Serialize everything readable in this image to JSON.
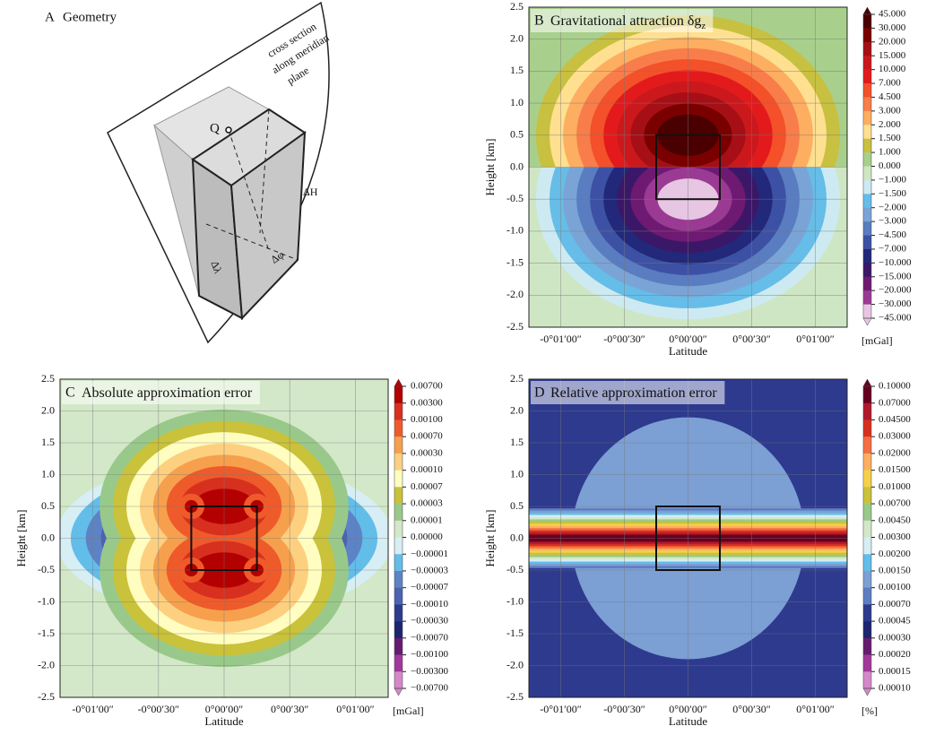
{
  "diagram": {
    "label": "A",
    "title": "Geometry",
    "annotation": [
      "cross section",
      "along meridian",
      "plane"
    ],
    "point": "Q",
    "dims": [
      "ΔH",
      "Δλ",
      "Δφ"
    ]
  },
  "chart_data": [
    {
      "type": "contour",
      "panel": "B",
      "title": "Gravitational attraction δg",
      "title_sub": "z",
      "xlabel": "Latitude",
      "ylabel": "Height [km]",
      "unit": "[mGal]",
      "xlim": [
        -75,
        75
      ],
      "ylim": [
        -2.5,
        2.5
      ],
      "xticks": [
        {
          "value": -60,
          "label": "-0°01′00″"
        },
        {
          "value": -30,
          "label": "-0°00′30″"
        },
        {
          "value": 0,
          "label": "0°00′00″"
        },
        {
          "value": 30,
          "label": "0°00′30″"
        },
        {
          "value": 60,
          "label": "0°01′00″"
        }
      ],
      "yticks": [
        -2.5,
        {
          "value": -2,
          "label": "-2.0"
        },
        -1.5,
        {
          "value": -1,
          "label": "-1.0"
        },
        -0.5,
        {
          "value": 0,
          "label": "0.0"
        },
        0.5,
        {
          "value": 1,
          "label": "1.0"
        },
        1.5,
        {
          "value": 2,
          "label": "2.0"
        },
        2.5
      ],
      "grid": true,
      "prism": {
        "x": [
          -15,
          15
        ],
        "y": [
          -0.5,
          0.5
        ]
      },
      "levels": [
        {
          "value": 45,
          "label": "45.000"
        },
        {
          "value": 30,
          "label": "30.000"
        },
        {
          "value": 20,
          "label": "20.000"
        },
        {
          "value": 15,
          "label": "15.000"
        },
        {
          "value": 10,
          "label": "10.000"
        },
        {
          "value": 7,
          "label": "7.000"
        },
        {
          "value": 4.5,
          "label": "4.500"
        },
        {
          "value": 3,
          "label": "3.000"
        },
        {
          "value": 2,
          "label": "2.000"
        },
        {
          "value": 1.5,
          "label": "1.500"
        },
        {
          "value": 1,
          "label": "1.000"
        },
        {
          "value": 0,
          "label": "0.000"
        },
        {
          "value": -1,
          "label": "−1.000"
        },
        {
          "value": -1.5,
          "label": "−1.500"
        },
        {
          "value": -2,
          "label": "−2.000"
        },
        {
          "value": -3,
          "label": "−3.000"
        },
        {
          "value": -4.5,
          "label": "−4.500"
        },
        {
          "value": -7,
          "label": "−7.000"
        },
        {
          "value": -10,
          "label": "−10.000"
        },
        {
          "value": -15,
          "label": "−15.000"
        },
        {
          "value": -20,
          "label": "−20.000"
        },
        {
          "value": -30,
          "label": "−30.000"
        },
        {
          "value": -45,
          "label": "−45.000"
        }
      ],
      "colors": [
        "#4a0000",
        "#7a0000",
        "#a50f15",
        "#cb181d",
        "#e31a1c",
        "#f4502a",
        "#f87d4a",
        "#fdae61",
        "#fee090",
        "#c8c040",
        "#a8d08c",
        "#cfe6c4",
        "#cdeaf2",
        "#66bde8",
        "#7ba4d6",
        "#5a7cc0",
        "#3d51a4",
        "#22287a",
        "#3b1768",
        "#6e1a72",
        "#9b3a93",
        "#e6c6e2"
      ]
    },
    {
      "type": "contour",
      "panel": "C",
      "title": "Absolute approximation error",
      "xlabel": "Latitude",
      "ylabel": "Height [km]",
      "unit": "[mGal]",
      "xlim": [
        -75,
        75
      ],
      "ylim": [
        -2.5,
        2.5
      ],
      "xticks": [
        {
          "value": -60,
          "label": "-0°01′00″"
        },
        {
          "value": -30,
          "label": "-0°00′30″"
        },
        {
          "value": 0,
          "label": "0°00′00″"
        },
        {
          "value": 30,
          "label": "0°00′30″"
        },
        {
          "value": 60,
          "label": "0°01′00″"
        }
      ],
      "yticks": [
        -2.5,
        {
          "value": -2,
          "label": "-2.0"
        },
        -1.5,
        {
          "value": -1,
          "label": "-1.0"
        },
        -0.5,
        {
          "value": 0,
          "label": "0.0"
        },
        0.5,
        {
          "value": 1,
          "label": "1.0"
        },
        1.5,
        {
          "value": 2,
          "label": "2.0"
        },
        2.5
      ],
      "grid": true,
      "prism": {
        "x": [
          -15,
          15
        ],
        "y": [
          -0.5,
          0.5
        ]
      },
      "levels": [
        {
          "value": 0.007,
          "label": "0.00700"
        },
        {
          "value": 0.003,
          "label": "0.00300"
        },
        {
          "value": 0.001,
          "label": "0.00100"
        },
        {
          "value": 0.0007,
          "label": "0.00070"
        },
        {
          "value": 0.0003,
          "label": "0.00030"
        },
        {
          "value": 0.0001,
          "label": "0.00010"
        },
        {
          "value": 7e-05,
          "label": "0.00007"
        },
        {
          "value": 3e-05,
          "label": "0.00003"
        },
        {
          "value": 1e-05,
          "label": "0.00001"
        },
        {
          "value": 0,
          "label": "0.00000"
        },
        {
          "value": -1e-05,
          "label": "−0.00001"
        },
        {
          "value": -3e-05,
          "label": "−0.00003"
        },
        {
          "value": -7e-05,
          "label": "−0.00007"
        },
        {
          "value": -0.0001,
          "label": "−0.00010"
        },
        {
          "value": -0.0003,
          "label": "−0.00030"
        },
        {
          "value": -0.0007,
          "label": "−0.00070"
        },
        {
          "value": -0.001,
          "label": "−0.00100"
        },
        {
          "value": -0.003,
          "label": "−0.00300"
        },
        {
          "value": -0.007,
          "label": "−0.00700"
        }
      ],
      "colors": [
        "#b30000",
        "#d7301f",
        "#ef5a2a",
        "#f6a04d",
        "#fdd080",
        "#fffdc0",
        "#c9c23a",
        "#99c98a",
        "#d3e8c8",
        "#d6eef4",
        "#62bde9",
        "#5d83c6",
        "#4c62b2",
        "#2d3a8e",
        "#1d2470",
        "#661c6e",
        "#a1389a",
        "#d488c8"
      ]
    },
    {
      "type": "contour",
      "panel": "D",
      "title": "Relative approximation error",
      "xlabel": "Latitude",
      "ylabel": "Height [km]",
      "unit": "[%]",
      "xlim": [
        -75,
        75
      ],
      "ylim": [
        -2.5,
        2.5
      ],
      "xticks": [
        {
          "value": -60,
          "label": "-0°01′00″"
        },
        {
          "value": -30,
          "label": "-0°00′30″"
        },
        {
          "value": 0,
          "label": "0°00′00″"
        },
        {
          "value": 30,
          "label": "0°00′30″"
        },
        {
          "value": 60,
          "label": "0°01′00″"
        }
      ],
      "yticks": [
        -2.5,
        {
          "value": -2,
          "label": "-2.0"
        },
        -1.5,
        {
          "value": -1,
          "label": "-1.0"
        },
        -0.5,
        {
          "value": 0,
          "label": "0.0"
        },
        0.5,
        {
          "value": 1,
          "label": "1.0"
        },
        1.5,
        {
          "value": 2,
          "label": "2.0"
        },
        2.5
      ],
      "grid": true,
      "prism": {
        "x": [
          -15,
          15
        ],
        "y": [
          -0.5,
          0.5
        ]
      },
      "levels": [
        {
          "value": 0.1,
          "label": "0.10000"
        },
        {
          "value": 0.07,
          "label": "0.07000"
        },
        {
          "value": 0.045,
          "label": "0.04500"
        },
        {
          "value": 0.03,
          "label": "0.03000"
        },
        {
          "value": 0.02,
          "label": "0.02000"
        },
        {
          "value": 0.015,
          "label": "0.01500"
        },
        {
          "value": 0.01,
          "label": "0.01000"
        },
        {
          "value": 0.007,
          "label": "0.00700"
        },
        {
          "value": 0.0045,
          "label": "0.00450"
        },
        {
          "value": 0.003,
          "label": "0.00300"
        },
        {
          "value": 0.002,
          "label": "0.00200"
        },
        {
          "value": 0.0015,
          "label": "0.00150"
        },
        {
          "value": 0.001,
          "label": "0.00100"
        },
        {
          "value": 0.0007,
          "label": "0.00070"
        },
        {
          "value": 0.00045,
          "label": "0.00045"
        },
        {
          "value": 0.0003,
          "label": "0.00030"
        },
        {
          "value": 0.0002,
          "label": "0.00020"
        },
        {
          "value": 0.00015,
          "label": "0.00015"
        },
        {
          "value": 0.0001,
          "label": "0.00010"
        }
      ],
      "colors": [
        "#67001f",
        "#b2182b",
        "#d7301f",
        "#f46d43",
        "#fdae61",
        "#f5d04a",
        "#c9c23a",
        "#99c98a",
        "#d3e8c8",
        "#d6eef4",
        "#62bde9",
        "#7c9fd4",
        "#5d7cc2",
        "#2d3a8e",
        "#1d2470",
        "#661c6e",
        "#a1389a",
        "#d488c8"
      ]
    }
  ]
}
